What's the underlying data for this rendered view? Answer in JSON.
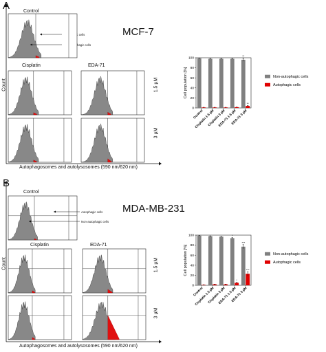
{
  "panels": [
    {
      "letter": "A",
      "cell_line": "MCF-7",
      "control_label": "Control",
      "treatment_labels": [
        "Cisplatin",
        "EDA-71"
      ],
      "dose_labels": [
        "1.5 µM",
        "3 µM"
      ],
      "annotation_autophagic": "Autophagic cells",
      "annotation_nonautophagic": "Non-autophagic cells",
      "xaxis_label": "Autophagosomes and autolysosomes (590 nm/620 nm)",
      "yaxis_label": "Count"
    },
    {
      "letter": "B",
      "cell_line": "MDA-MB-231",
      "control_label": "Control",
      "treatment_labels": [
        "Cisplatin",
        "EDA-71"
      ],
      "dose_labels": [
        "1.5 µM",
        "3 µM"
      ],
      "annotation_autophagic": "Autophagic cells",
      "annotation_nonautophagic": "Non-autophagic cells",
      "xaxis_label": "Autophagosomes and autolysosomes (590 nm/620 nm)",
      "yaxis_label": "Count"
    }
  ],
  "chart_data": [
    {
      "type": "bar",
      "ylabel": "Cell population [%]",
      "ylim": [
        0,
        100
      ],
      "yticks": [
        "0",
        "20",
        "40",
        "60",
        "80",
        "100"
      ],
      "categories": [
        "Control",
        "Cisplatin 1.5 µM",
        "Cisplatin 3 µM",
        "EDA-71 1.5 µM",
        "EDA-71 3 µM"
      ],
      "series": [
        {
          "name": "Non-autophagic cells",
          "color": "#808080",
          "values": [
            99,
            98,
            98,
            98,
            96
          ],
          "errors": [
            0.5,
            0.5,
            0.5,
            0.5,
            3
          ]
        },
        {
          "name": "Autophagic cells",
          "color": "#e00000",
          "values": [
            1,
            1,
            1,
            1.5,
            4
          ],
          "errors": [
            0.3,
            0.3,
            0.3,
            0.3,
            1
          ]
        }
      ],
      "significance": {
        "series0": [
          "",
          "",
          "",
          "",
          "**"
        ],
        "series1": [
          "",
          "",
          "",
          "",
          "**"
        ]
      },
      "legend": "right"
    },
    {
      "type": "bar",
      "ylabel": "Cell population [%]",
      "ylim": [
        0,
        100
      ],
      "yticks": [
        "0",
        "20",
        "40",
        "60",
        "80",
        "100"
      ],
      "categories": [
        "Control",
        "Cisplatin 1.5 µM",
        "Cisplatin 3 µM",
        "EDA-71 1.5 µM",
        "EDA-71 3 µM"
      ],
      "series": [
        {
          "name": "Non-autophagic cells",
          "color": "#808080",
          "values": [
            99,
            98,
            97,
            94,
            77
          ],
          "errors": [
            0.5,
            0.5,
            0.5,
            1,
            4
          ]
        },
        {
          "name": "Autophagic cells",
          "color": "#e00000",
          "values": [
            1,
            2,
            2,
            5,
            23
          ],
          "errors": [
            0.3,
            0.3,
            0.3,
            1,
            4
          ]
        }
      ],
      "significance": {
        "series0": [
          "",
          "",
          "",
          "*",
          "***"
        ],
        "series1": [
          "",
          "",
          "",
          "*",
          "***"
        ]
      },
      "legend": "right"
    }
  ]
}
